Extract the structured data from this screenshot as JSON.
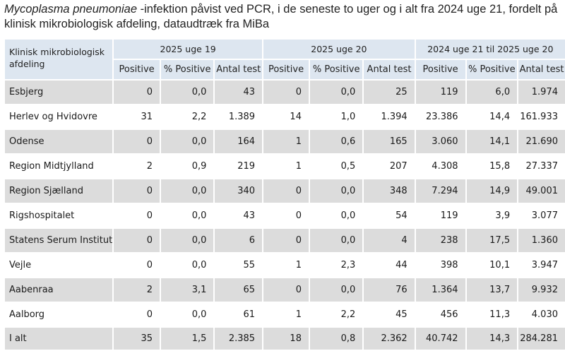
{
  "title": {
    "species": "Mycoplasma pneumoniae",
    "rest": " -infektion påvist ved PCR, i de seneste to uger og i alt fra 2024 uge 21, fordelt på klinisk mikrobiologisk afdeling, dataudtræk fra MiBa"
  },
  "table": {
    "corner_label": "Klinisk mikrobiologisk afdeling",
    "groups": [
      "2025 uge 19",
      "2025 uge 20",
      "2024 uge 21 til 2025 uge 20"
    ],
    "subheaders": [
      "Positive",
      "% Positive",
      "Antal test",
      "Positive",
      "% Positive",
      "Antal test",
      "Positive",
      "% Positive",
      "Antal test"
    ],
    "rows": [
      {
        "name": "Esbjerg",
        "values": [
          "0",
          "0,0",
          "43",
          "0",
          "0,0",
          "25",
          "119",
          "6,0",
          "1.974"
        ]
      },
      {
        "name": "Herlev og Hvidovre",
        "values": [
          "31",
          "2,2",
          "1.389",
          "14",
          "1,0",
          "1.394",
          "23.386",
          "14,4",
          "161.933"
        ]
      },
      {
        "name": "Odense",
        "values": [
          "0",
          "0,0",
          "164",
          "1",
          "0,6",
          "165",
          "3.060",
          "14,1",
          "21.690"
        ]
      },
      {
        "name": "Region Midtjylland",
        "values": [
          "2",
          "0,9",
          "219",
          "1",
          "0,5",
          "207",
          "4.308",
          "15,8",
          "27.337"
        ]
      },
      {
        "name": "Region Sjælland",
        "values": [
          "0",
          "0,0",
          "340",
          "0",
          "0,0",
          "348",
          "7.294",
          "14,9",
          "49.001"
        ]
      },
      {
        "name": "Rigshospitalet",
        "values": [
          "0",
          "0,0",
          "43",
          "0",
          "0,0",
          "54",
          "119",
          "3,9",
          "3.077"
        ]
      },
      {
        "name": "Statens Serum Institut",
        "values": [
          "0",
          "0,0",
          "6",
          "0",
          "0,0",
          "4",
          "238",
          "17,5",
          "1.360"
        ]
      },
      {
        "name": "Vejle",
        "values": [
          "0",
          "0,0",
          "55",
          "1",
          "2,3",
          "44",
          "398",
          "10,1",
          "3.947"
        ]
      },
      {
        "name": "Aabenraa",
        "values": [
          "2",
          "3,1",
          "65",
          "0",
          "0,0",
          "76",
          "1.364",
          "13,7",
          "9.932"
        ]
      },
      {
        "name": "Aalborg",
        "values": [
          "0",
          "0,0",
          "61",
          "1",
          "2,2",
          "45",
          "456",
          "11,3",
          "4.030"
        ]
      },
      {
        "name": "I alt",
        "values": [
          "35",
          "1,5",
          "2.385",
          "18",
          "0,8",
          "2.362",
          "40.742",
          "14,3",
          "284.281"
        ]
      }
    ]
  },
  "colors": {
    "header_bg": "#dde6f0",
    "band_bg": "#dcdcdc"
  }
}
